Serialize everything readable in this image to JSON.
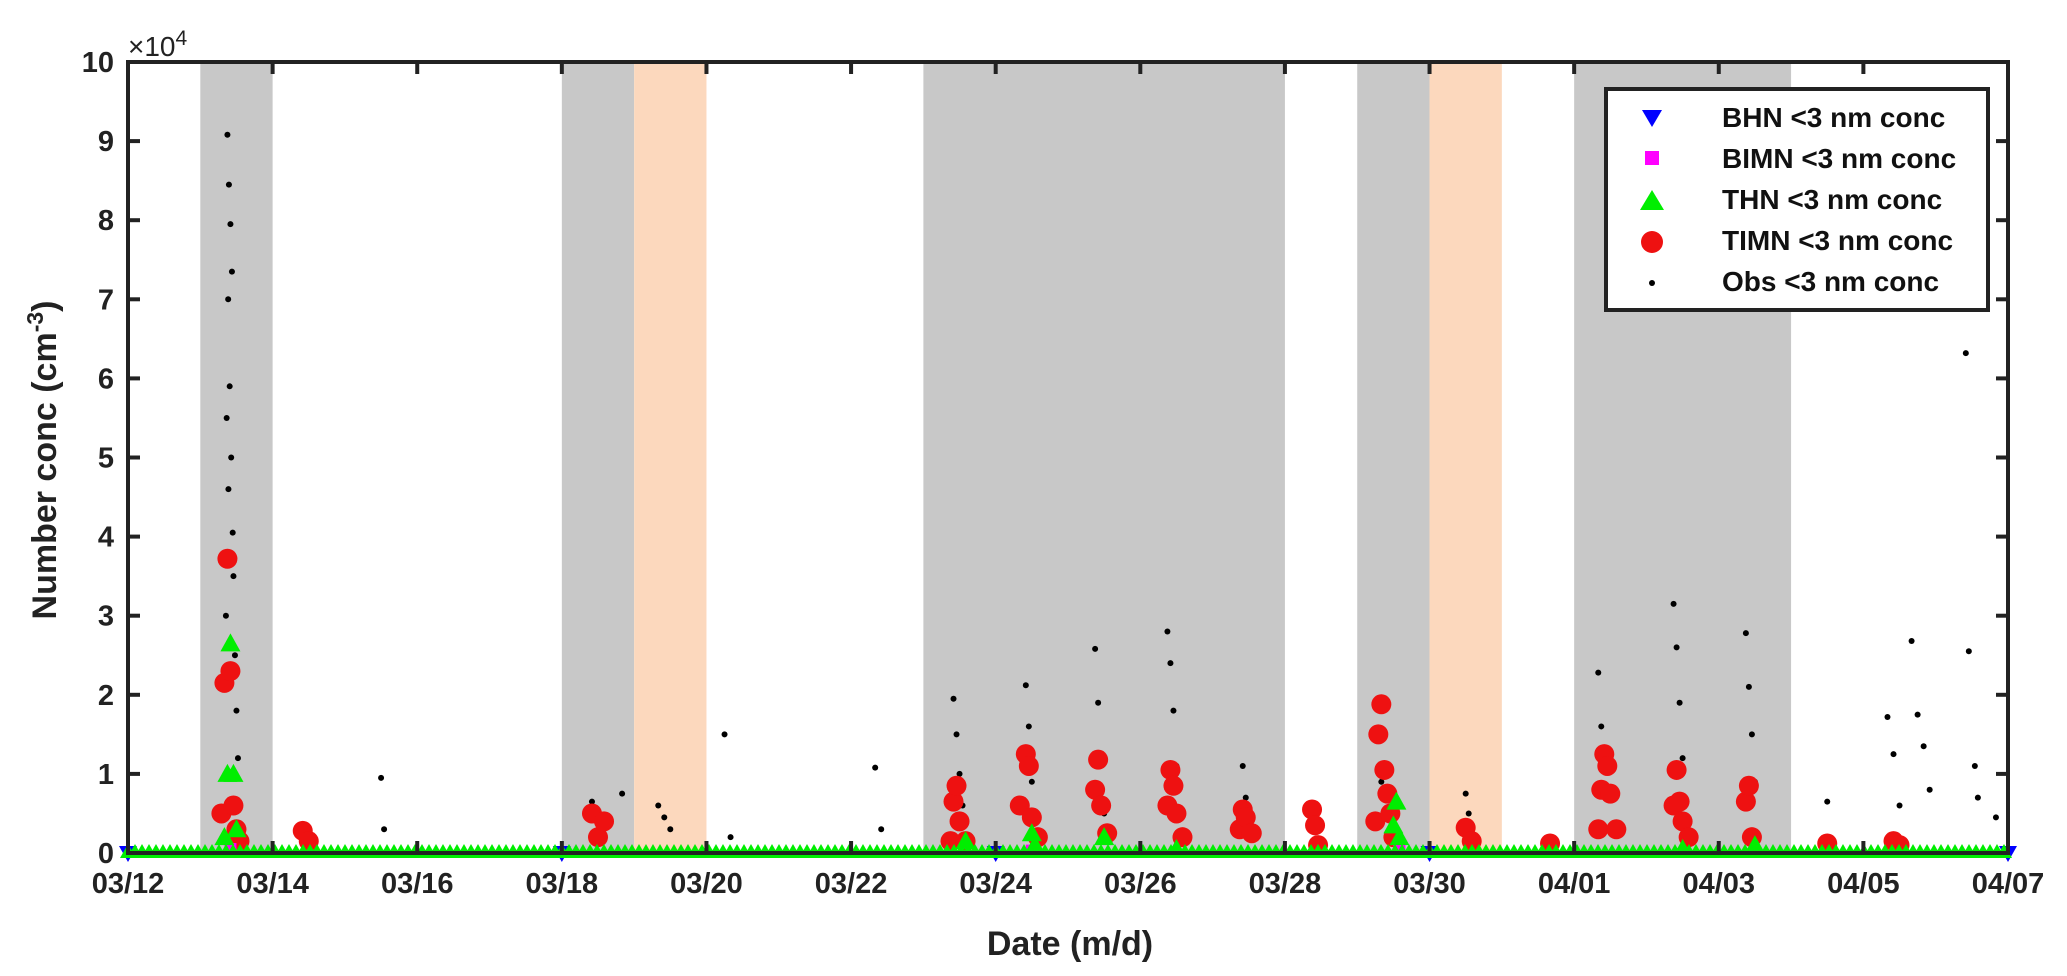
{
  "chart_data": {
    "type": "scatter",
    "xlabel": "Date (m/d)",
    "ylabel": "Number conc (cm",
    "ylabel_sup": "-3",
    "ylabel_close": ")",
    "exponent_prefix": "×10",
    "exponent_power": "4",
    "ylim": [
      0,
      10
    ],
    "yticks": [
      0,
      1,
      2,
      3,
      4,
      5,
      6,
      7,
      8,
      9,
      10
    ],
    "ytick_labels": [
      "0",
      "1",
      "2",
      "3",
      "4",
      "5",
      "6",
      "7",
      "8",
      "9",
      "10"
    ],
    "xlim": [
      "2020-03-12",
      "2020-04-07"
    ],
    "xticks": [
      "2020-03-12",
      "2020-03-14",
      "2020-03-16",
      "2020-03-18",
      "2020-03-20",
      "2020-03-22",
      "2020-03-24",
      "2020-03-26",
      "2020-03-28",
      "2020-03-30",
      "2020-04-01",
      "2020-04-03",
      "2020-04-05",
      "2020-04-07"
    ],
    "xtick_labels": [
      "03/12",
      "03/14",
      "03/16",
      "03/18",
      "03/20",
      "03/22",
      "03/24",
      "03/26",
      "03/28",
      "03/30",
      "04/01",
      "04/03",
      "04/05",
      "04/07"
    ],
    "grid": false,
    "legend_position": "top-right",
    "shaded_periods": [
      {
        "start": "2020-03-13",
        "end": "2020-03-14",
        "color": "#c8c8c8"
      },
      {
        "start": "2020-03-18",
        "end": "2020-03-19",
        "color": "#c8c8c8"
      },
      {
        "start": "2020-03-19",
        "end": "2020-03-20",
        "color": "#fcd8bd"
      },
      {
        "start": "2020-03-23",
        "end": "2020-03-28",
        "color": "#c8c8c8"
      },
      {
        "start": "2020-03-29",
        "end": "2020-03-30",
        "color": "#c8c8c8"
      },
      {
        "start": "2020-03-30",
        "end": "2020-03-31",
        "color": "#fcd8bd"
      },
      {
        "start": "2020-04-01",
        "end": "2020-04-04",
        "color": "#c8c8c8"
      }
    ],
    "series": [
      {
        "name": "BHN <3 nm conc",
        "marker": "triangle-down",
        "color": "#0000ff",
        "points": [
          [
            "2020-03-12",
            0
          ],
          [
            "2020-03-18",
            0
          ],
          [
            "2020-03-24",
            0
          ],
          [
            "2020-03-30",
            0
          ],
          [
            "2020-04-07",
            0
          ]
        ]
      },
      {
        "name": "BIMN <3 nm conc",
        "marker": "square",
        "color": "#ff00ff",
        "points": [
          [
            "2020-03-13 10:00",
            0.05
          ],
          [
            "2020-03-24 12:00",
            0.03
          ],
          [
            "2020-03-29 14:00",
            0.04
          ]
        ]
      },
      {
        "name": "THN <3 nm conc",
        "marker": "triangle-up",
        "color": "#00ee00",
        "points": [
          [
            "2020-03-13 08:00",
            0.2
          ],
          [
            "2020-03-13 09:00",
            1.0
          ],
          [
            "2020-03-13 10:00",
            2.65
          ],
          [
            "2020-03-13 11:00",
            1.0
          ],
          [
            "2020-03-13 12:00",
            0.3
          ],
          [
            "2020-03-23 14:00",
            0.15
          ],
          [
            "2020-03-24 12:00",
            0.25
          ],
          [
            "2020-03-24 13:00",
            0.1
          ],
          [
            "2020-03-25 12:00",
            0.2
          ],
          [
            "2020-03-26 12:00",
            0.05
          ],
          [
            "2020-03-29 12:00",
            0.35
          ],
          [
            "2020-03-29 13:00",
            0.65
          ],
          [
            "2020-03-29 14:00",
            0.2
          ],
          [
            "2020-04-02 12:00",
            0.05
          ],
          [
            "2020-04-03 12:00",
            0.1
          ]
        ]
      },
      {
        "name": "TIMN <3 nm conc",
        "marker": "circle",
        "color": "#ee1111",
        "points": [
          [
            "2020-03-13 07:00",
            0.5
          ],
          [
            "2020-03-13 08:00",
            2.15
          ],
          [
            "2020-03-13 09:00",
            3.72
          ],
          [
            "2020-03-13 10:00",
            2.3
          ],
          [
            "2020-03-13 11:00",
            0.6
          ],
          [
            "2020-03-13 12:00",
            0.3
          ],
          [
            "2020-03-13 13:00",
            0.15
          ],
          [
            "2020-03-14 10:00",
            0.28
          ],
          [
            "2020-03-14 12:00",
            0.15
          ],
          [
            "2020-03-18 10:00",
            0.5
          ],
          [
            "2020-03-18 12:00",
            0.2
          ],
          [
            "2020-03-18 14:00",
            0.4
          ],
          [
            "2020-03-23 09:00",
            0.15
          ],
          [
            "2020-03-23 10:00",
            0.65
          ],
          [
            "2020-03-23 11:00",
            0.85
          ],
          [
            "2020-03-23 12:00",
            0.4
          ],
          [
            "2020-03-23 14:00",
            0.15
          ],
          [
            "2020-03-24 08:00",
            0.6
          ],
          [
            "2020-03-24 10:00",
            1.25
          ],
          [
            "2020-03-24 11:00",
            1.1
          ],
          [
            "2020-03-24 12:00",
            0.45
          ],
          [
            "2020-03-24 14:00",
            0.2
          ],
          [
            "2020-03-25 09:00",
            0.8
          ],
          [
            "2020-03-25 10:00",
            1.18
          ],
          [
            "2020-03-25 11:00",
            0.6
          ],
          [
            "2020-03-25 13:00",
            0.25
          ],
          [
            "2020-03-26 09:00",
            0.6
          ],
          [
            "2020-03-26 10:00",
            1.05
          ],
          [
            "2020-03-26 11:00",
            0.85
          ],
          [
            "2020-03-26 12:00",
            0.5
          ],
          [
            "2020-03-26 14:00",
            0.2
          ],
          [
            "2020-03-27 09:00",
            0.3
          ],
          [
            "2020-03-27 10:00",
            0.55
          ],
          [
            "2020-03-27 11:00",
            0.45
          ],
          [
            "2020-03-27 13:00",
            0.25
          ],
          [
            "2020-03-28 09:00",
            0.55
          ],
          [
            "2020-03-28 10:00",
            0.35
          ],
          [
            "2020-03-28 11:00",
            0.1
          ],
          [
            "2020-03-29 06:00",
            0.4
          ],
          [
            "2020-03-29 07:00",
            1.5
          ],
          [
            "2020-03-29 08:00",
            1.88
          ],
          [
            "2020-03-29 09:00",
            1.05
          ],
          [
            "2020-03-29 10:00",
            0.75
          ],
          [
            "2020-03-29 11:00",
            0.5
          ],
          [
            "2020-03-29 12:00",
            0.2
          ],
          [
            "2020-03-30 12:00",
            0.32
          ],
          [
            "2020-03-30 14:00",
            0.15
          ],
          [
            "2020-03-31 16:00",
            0.12
          ],
          [
            "2020-04-01 08:00",
            0.3
          ],
          [
            "2020-04-01 09:00",
            0.8
          ],
          [
            "2020-04-01 10:00",
            1.25
          ],
          [
            "2020-04-01 11:00",
            1.1
          ],
          [
            "2020-04-01 12:00",
            0.75
          ],
          [
            "2020-04-01 14:00",
            0.3
          ],
          [
            "2020-04-02 09:00",
            0.6
          ],
          [
            "2020-04-02 10:00",
            1.05
          ],
          [
            "2020-04-02 11:00",
            0.65
          ],
          [
            "2020-04-02 12:00",
            0.4
          ],
          [
            "2020-04-02 14:00",
            0.2
          ],
          [
            "2020-04-03 09:00",
            0.65
          ],
          [
            "2020-04-03 10:00",
            0.85
          ],
          [
            "2020-04-03 11:00",
            0.2
          ],
          [
            "2020-04-04 12:00",
            0.12
          ],
          [
            "2020-04-05 10:00",
            0.15
          ],
          [
            "2020-04-05 12:00",
            0.1
          ]
        ]
      },
      {
        "name": "Obs <3 nm conc",
        "marker": "dot",
        "color": "#000000",
        "points": [
          [
            "2020-03-13 09:00",
            9.08
          ],
          [
            "2020-03-13 09:30",
            8.45
          ],
          [
            "2020-03-13 10:00",
            7.95
          ],
          [
            "2020-03-13 10:30",
            7.35
          ],
          [
            "2020-03-13 09:15",
            7.0
          ],
          [
            "2020-03-13 09:45",
            5.9
          ],
          [
            "2020-03-13 08:45",
            5.5
          ],
          [
            "2020-03-13 10:15",
            5.0
          ],
          [
            "2020-03-13 09:20",
            4.6
          ],
          [
            "2020-03-13 10:45",
            4.05
          ],
          [
            "2020-03-13 11:00",
            3.5
          ],
          [
            "2020-03-13 08:30",
            3.0
          ],
          [
            "2020-03-13 11:30",
            2.5
          ],
          [
            "2020-03-13 12:00",
            1.8
          ],
          [
            "2020-03-13 12:30",
            1.2
          ],
          [
            "2020-03-13 13:00",
            0.6
          ],
          [
            "2020-03-15 12:00",
            0.95
          ],
          [
            "2020-03-15 13:00",
            0.3
          ],
          [
            "2020-03-18 10:00",
            0.65
          ],
          [
            "2020-03-18 20:00",
            0.75
          ],
          [
            "2020-03-19 08:00",
            0.6
          ],
          [
            "2020-03-19 10:00",
            0.45
          ],
          [
            "2020-03-19 12:00",
            0.3
          ],
          [
            "2020-03-20 06:00",
            1.5
          ],
          [
            "2020-03-20 08:00",
            0.2
          ],
          [
            "2020-03-22 08:00",
            1.08
          ],
          [
            "2020-03-22 10:00",
            0.3
          ],
          [
            "2020-03-23 10:00",
            1.95
          ],
          [
            "2020-03-23 11:00",
            1.5
          ],
          [
            "2020-03-23 12:00",
            1.0
          ],
          [
            "2020-03-23 13:00",
            0.6
          ],
          [
            "2020-03-24 10:00",
            2.12
          ],
          [
            "2020-03-24 11:00",
            1.6
          ],
          [
            "2020-03-24 12:00",
            0.9
          ],
          [
            "2020-03-25 09:00",
            2.58
          ],
          [
            "2020-03-25 10:00",
            1.9
          ],
          [
            "2020-03-25 11:00",
            1.2
          ],
          [
            "2020-03-25 12:00",
            0.5
          ],
          [
            "2020-03-26 09:00",
            2.8
          ],
          [
            "2020-03-26 10:00",
            2.4
          ],
          [
            "2020-03-26 11:00",
            1.8
          ],
          [
            "2020-03-26 12:00",
            1.1
          ],
          [
            "2020-03-27 10:00",
            1.1
          ],
          [
            "2020-03-27 11:00",
            0.7
          ],
          [
            "2020-03-29 08:00",
            0.9
          ],
          [
            "2020-03-29 10:00",
            0.5
          ],
          [
            "2020-03-30 12:00",
            0.75
          ],
          [
            "2020-03-30 13:00",
            0.5
          ],
          [
            "2020-04-01 08:00",
            2.28
          ],
          [
            "2020-04-01 09:00",
            1.6
          ],
          [
            "2020-04-01 10:00",
            1.2
          ],
          [
            "2020-04-01 12:00",
            0.8
          ],
          [
            "2020-04-02 09:00",
            3.15
          ],
          [
            "2020-04-02 10:00",
            2.6
          ],
          [
            "2020-04-02 11:00",
            1.9
          ],
          [
            "2020-04-02 12:00",
            1.2
          ],
          [
            "2020-04-03 09:00",
            2.78
          ],
          [
            "2020-04-03 10:00",
            2.1
          ],
          [
            "2020-04-03 11:00",
            1.5
          ],
          [
            "2020-04-03 12:00",
            0.9
          ],
          [
            "2020-04-04 12:00",
            0.65
          ],
          [
            "2020-04-05 08:00",
            1.72
          ],
          [
            "2020-04-05 10:00",
            1.25
          ],
          [
            "2020-04-05 12:00",
            0.6
          ],
          [
            "2020-04-05 16:00",
            2.68
          ],
          [
            "2020-04-05 18:00",
            1.75
          ],
          [
            "2020-04-05 20:00",
            1.35
          ],
          [
            "2020-04-05 22:00",
            0.8
          ],
          [
            "2020-04-06 10:00",
            6.32
          ],
          [
            "2020-04-06 11:00",
            2.55
          ],
          [
            "2020-04-06 13:00",
            1.1
          ],
          [
            "2020-04-06 14:00",
            0.7
          ],
          [
            "2020-04-06 20:00",
            0.45
          ]
        ]
      }
    ]
  }
}
